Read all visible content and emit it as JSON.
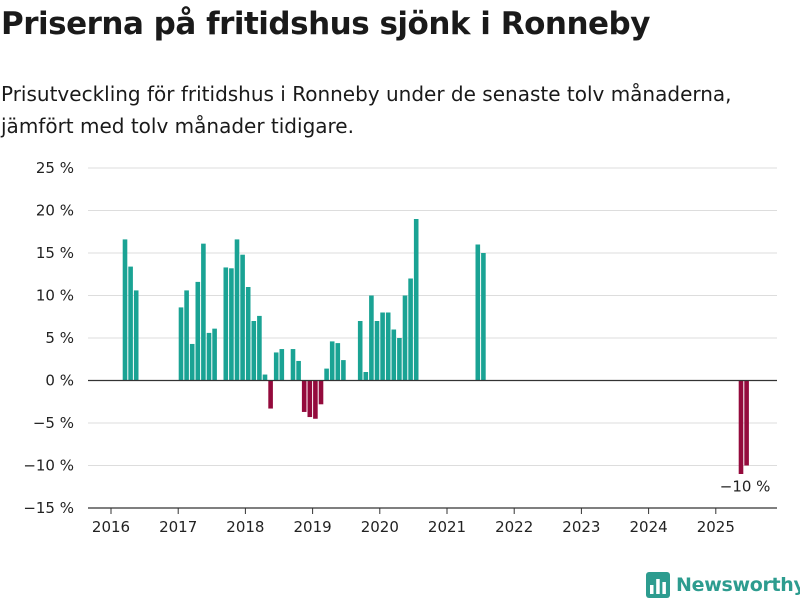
{
  "header": {
    "title": "Priserna på fritidshus sjönk i Ronneby",
    "subtitle": "Prisutveckling för fritidshus i Ronneby under de senaste tolv månaderna, jämfört med tolv månader tidigare."
  },
  "brand": {
    "name": "Newsworthy",
    "icon": "bar-chart-logo-icon"
  },
  "colors": {
    "positive": "#1aa394",
    "negative": "#940a3c",
    "grid": "#dddddd",
    "zero_line": "#333333",
    "brand": "#2d9c8f"
  },
  "chart_data": {
    "type": "bar",
    "title": "",
    "xlabel": "",
    "ylabel": "",
    "y_unit": "%",
    "ylim": [
      -15,
      25
    ],
    "y_ticks": [
      25,
      20,
      15,
      10,
      5,
      0,
      -5,
      -10,
      -15
    ],
    "y_tick_labels": [
      "25 %",
      "20 %",
      "15 %",
      "10 %",
      "5 %",
      "0 %",
      "−5 %",
      "−10 %",
      "−15 %"
    ],
    "x_ticks": [
      "2016",
      "2017",
      "2018",
      "2019",
      "2020",
      "2021",
      "2022",
      "2023",
      "2024",
      "2025"
    ],
    "grid": true,
    "legend": "none",
    "series": [
      {
        "values": [
          {
            "x": "2016-03",
            "y": 16.6
          },
          {
            "x": "2016-04",
            "y": 13.4
          },
          {
            "x": "2016-05",
            "y": 10.6
          },
          {
            "x": "2017-01",
            "y": 8.6
          },
          {
            "x": "2017-02",
            "y": 10.6
          },
          {
            "x": "2017-03",
            "y": 4.3
          },
          {
            "x": "2017-04",
            "y": 11.6
          },
          {
            "x": "2017-05",
            "y": 16.1
          },
          {
            "x": "2017-06",
            "y": 5.6
          },
          {
            "x": "2017-07",
            "y": 6.1
          },
          {
            "x": "2017-09",
            "y": 13.3
          },
          {
            "x": "2017-10",
            "y": 13.2
          },
          {
            "x": "2017-11",
            "y": 16.6
          },
          {
            "x": "2017-12",
            "y": 14.8
          },
          {
            "x": "2018-01",
            "y": 11.0
          },
          {
            "x": "2018-02",
            "y": 7.0
          },
          {
            "x": "2018-03",
            "y": 7.6
          },
          {
            "x": "2018-04",
            "y": 0.7
          },
          {
            "x": "2018-05",
            "y": -3.3
          },
          {
            "x": "2018-06",
            "y": 3.3
          },
          {
            "x": "2018-07",
            "y": 3.7
          },
          {
            "x": "2018-09",
            "y": 3.7
          },
          {
            "x": "2018-10",
            "y": 2.3
          },
          {
            "x": "2018-11",
            "y": -3.7
          },
          {
            "x": "2018-12",
            "y": -4.3
          },
          {
            "x": "2019-01",
            "y": -4.5
          },
          {
            "x": "2019-02",
            "y": -2.8
          },
          {
            "x": "2019-03",
            "y": 1.4
          },
          {
            "x": "2019-04",
            "y": 4.6
          },
          {
            "x": "2019-05",
            "y": 4.4
          },
          {
            "x": "2019-06",
            "y": 2.4
          },
          {
            "x": "2019-09",
            "y": 7.0
          },
          {
            "x": "2019-10",
            "y": 1.0
          },
          {
            "x": "2019-11",
            "y": 10.0
          },
          {
            "x": "2019-12",
            "y": 7.0
          },
          {
            "x": "2020-01",
            "y": 8.0
          },
          {
            "x": "2020-02",
            "y": 8.0
          },
          {
            "x": "2020-03",
            "y": 6.0
          },
          {
            "x": "2020-04",
            "y": 5.0
          },
          {
            "x": "2020-05",
            "y": 10.0
          },
          {
            "x": "2020-06",
            "y": 12.0
          },
          {
            "x": "2020-07",
            "y": 19.0
          },
          {
            "x": "2021-06",
            "y": 16.0
          },
          {
            "x": "2021-07",
            "y": 15.0
          },
          {
            "x": "2025-05",
            "y": -11.0
          },
          {
            "x": "2025-06",
            "y": -10.0
          }
        ]
      }
    ],
    "annotations": [
      {
        "x": "2025-06",
        "y": -10.0,
        "text": "−10 %"
      }
    ]
  }
}
